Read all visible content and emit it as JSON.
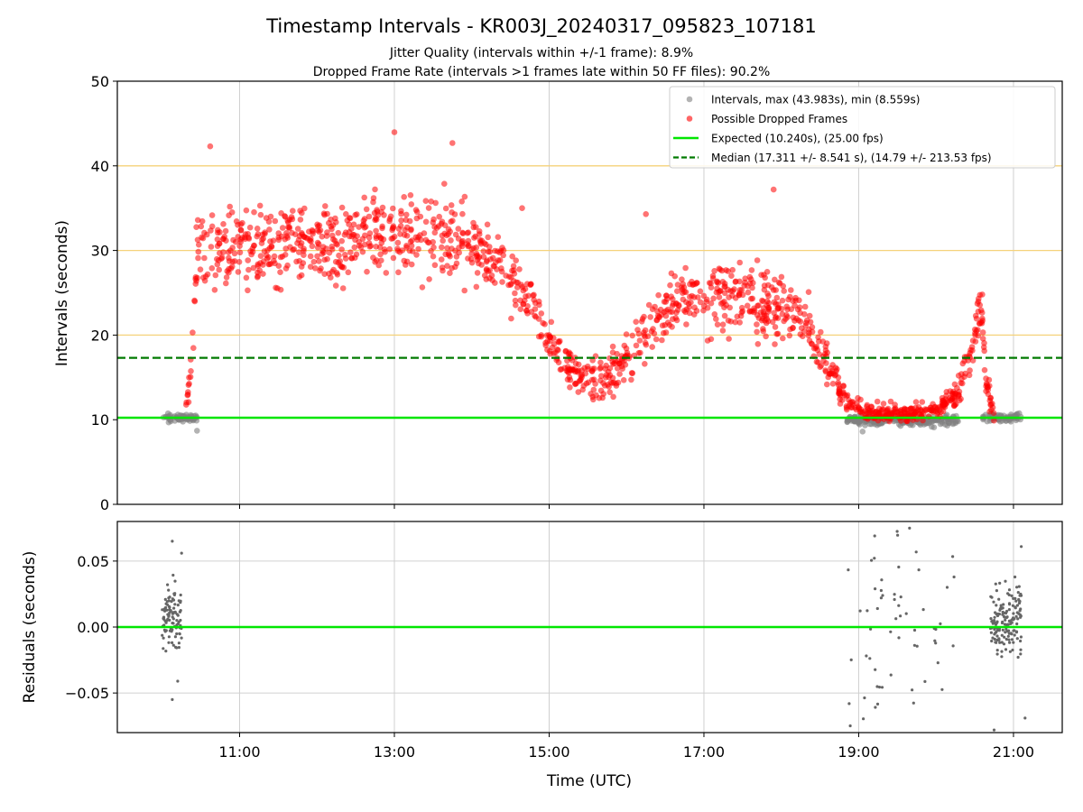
{
  "chart_data": [
    {
      "type": "scatter",
      "title": "Timestamp Intervals - KR003J_20240317_095823_107181",
      "subtitle_lines": [
        "Jitter Quality (intervals within +/-1 frame): 8.9%",
        "Dropped Frame Rate (intervals >1 frames late within 50 FF files): 90.2%"
      ],
      "ylabel": "Intervals (seconds)",
      "xlabel": "",
      "xlim": [
        9.42,
        21.63
      ],
      "ylim": [
        0,
        50
      ],
      "yticks": [
        "0",
        "10",
        "20",
        "30",
        "40",
        "50"
      ],
      "xticks": [
        11,
        13,
        15,
        17,
        19,
        21
      ],
      "grid": true,
      "frame_rate_lines": [
        20,
        30,
        40
      ],
      "expected_interval": 10.24,
      "median_interval": 17.311,
      "legend_position": "top-right",
      "legend": [
        {
          "label": "Intervals, max (43.983s), min (8.559s)",
          "marker": "dot",
          "color": "#808080"
        },
        {
          "label": "Possible Dropped Frames",
          "marker": "dot",
          "color": "#ff0000"
        },
        {
          "label": "Expected (10.240s), (25.00 fps)",
          "marker": "line",
          "color": "#00e600"
        },
        {
          "label": "Median (17.311 +/- 8.541 s), (14.79 +/- 213.53 fps)",
          "marker": "dashed",
          "color": "#007a00"
        }
      ],
      "series": [
        {
          "name": "Intervals, max (43.983s), min (8.559s)",
          "color": "#808080",
          "segments": [
            {
              "x_start": 10.0,
              "x_end": 10.45,
              "y_base": 10.25,
              "spread": 0.55
            },
            {
              "x_start": 18.85,
              "x_end": 20.3,
              "y_base": 9.9,
              "spread": 0.7
            },
            {
              "x_start": 20.6,
              "x_end": 21.1,
              "y_base": 10.25,
              "spread": 0.55
            }
          ],
          "extremes": [
            [
              10.45,
              8.7
            ],
            [
              19.05,
              8.6
            ]
          ]
        },
        {
          "name": "Possible Dropped Frames",
          "color": "#ff0000",
          "profile": [
            [
              10.3,
              11.5
            ],
            [
              10.38,
              17.5
            ],
            [
              10.45,
              30.0
            ],
            [
              11.0,
              30.5
            ],
            [
              12.0,
              31.0
            ],
            [
              13.0,
              32.0
            ],
            [
              13.7,
              31.5
            ],
            [
              14.2,
              29.5
            ],
            [
              14.6,
              26.0
            ],
            [
              14.85,
              23.0
            ],
            [
              15.05,
              18.5
            ],
            [
              15.4,
              15.0
            ],
            [
              15.7,
              14.5
            ],
            [
              16.0,
              17.0
            ],
            [
              16.3,
              21.0
            ],
            [
              16.8,
              25.0
            ],
            [
              17.5,
              24.5
            ],
            [
              18.0,
              23.5
            ],
            [
              18.3,
              22.0
            ],
            [
              18.55,
              17.5
            ],
            [
              18.85,
              12.0
            ],
            [
              19.2,
              10.7
            ],
            [
              19.6,
              10.8
            ],
            [
              20.0,
              11.2
            ],
            [
              20.25,
              13.0
            ],
            [
              20.45,
              17.5
            ],
            [
              20.58,
              24.0
            ],
            [
              20.65,
              14.0
            ],
            [
              20.75,
              10.4
            ]
          ],
          "spread_profile": [
            [
              10.3,
              1.5
            ],
            [
              10.45,
              4.5
            ],
            [
              13.0,
              5.0
            ],
            [
              14.2,
              4.0
            ],
            [
              14.9,
              2.5
            ],
            [
              15.5,
              2.5
            ],
            [
              16.3,
              3.0
            ],
            [
              17.5,
              4.5
            ],
            [
              18.3,
              3.5
            ],
            [
              18.6,
              2.0
            ],
            [
              18.9,
              1.0
            ],
            [
              20.1,
              1.0
            ],
            [
              20.4,
              2.0
            ],
            [
              20.6,
              2.5
            ],
            [
              20.75,
              0.6
            ]
          ],
          "outliers": [
            [
              10.62,
              42.3
            ],
            [
              13.0,
              43.98
            ],
            [
              13.75,
              42.7
            ],
            [
              16.25,
              34.3
            ],
            [
              17.9,
              37.2
            ],
            [
              14.65,
              35.0
            ]
          ]
        }
      ]
    },
    {
      "type": "scatter",
      "title": "",
      "xlabel": "Time (UTC)",
      "ylabel": "Residuals (seconds)",
      "xlim": [
        9.42,
        21.63
      ],
      "ylim": [
        -0.08,
        0.08
      ],
      "yticks": [
        "0.05",
        "0.00",
        "−0.05"
      ],
      "xticks": [
        "11:00",
        "13:00",
        "15:00",
        "17:00",
        "19:00",
        "21:00"
      ],
      "grid": true,
      "zero_line_color": "#00e600",
      "series": [
        {
          "name": "",
          "color": "#666666",
          "groups": [
            {
              "x_start": 10.0,
              "x_end": 10.25,
              "center": 0.008,
              "spread": 0.024
            },
            {
              "x_start": 18.85,
              "x_end": 20.25,
              "center": 0.0,
              "spread": 0.075
            },
            {
              "x_start": 20.7,
              "x_end": 21.1,
              "center": 0.005,
              "spread": 0.03
            }
          ],
          "extremes": [
            [
              10.13,
              0.065
            ],
            [
              10.13,
              -0.055
            ],
            [
              10.2,
              -0.041
            ],
            [
              10.25,
              0.056
            ],
            [
              20.75,
              -0.078
            ],
            [
              21.15,
              -0.069
            ],
            [
              21.1,
              0.061
            ]
          ]
        }
      ]
    }
  ]
}
